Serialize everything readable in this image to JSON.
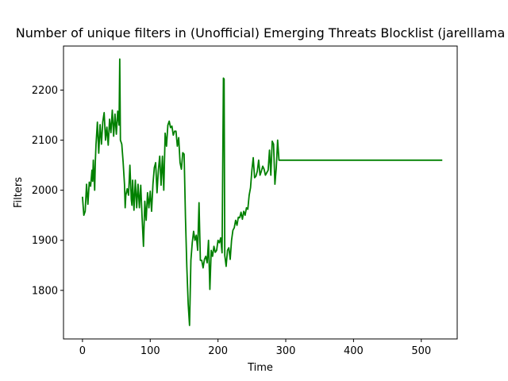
{
  "chart_data": {
    "type": "line",
    "title": "Number of unique filters in (Unofficial) Emerging Threats Blocklist (jarelllama",
    "xlabel": "Time",
    "ylabel": "Filters",
    "xlim": [
      -28,
      553
    ],
    "ylim": [
      1703,
      2288
    ],
    "xticks": [
      0,
      100,
      200,
      300,
      400,
      500
    ],
    "yticks": [
      1800,
      1900,
      2000,
      2100,
      2200
    ],
    "grid": false,
    "series": [
      {
        "color": "#008000",
        "points": [
          [
            0,
            1987
          ],
          [
            2,
            1950
          ],
          [
            4,
            1958
          ],
          [
            6,
            2012
          ],
          [
            8,
            1972
          ],
          [
            10,
            2016
          ],
          [
            12,
            2008
          ],
          [
            14,
            2040
          ],
          [
            15,
            2018
          ],
          [
            16,
            2060
          ],
          [
            18,
            2000
          ],
          [
            19,
            2058
          ],
          [
            20,
            2092
          ],
          [
            22,
            2136
          ],
          [
            24,
            2074
          ],
          [
            26,
            2131
          ],
          [
            28,
            2092
          ],
          [
            30,
            2137
          ],
          [
            32,
            2155
          ],
          [
            34,
            2100
          ],
          [
            36,
            2126
          ],
          [
            38,
            2090
          ],
          [
            40,
            2142
          ],
          [
            42,
            2115
          ],
          [
            44,
            2160
          ],
          [
            46,
            2108
          ],
          [
            48,
            2152
          ],
          [
            50,
            2112
          ],
          [
            52,
            2158
          ],
          [
            54,
            2130
          ],
          [
            55,
            2262
          ],
          [
            56,
            2100
          ],
          [
            58,
            2092
          ],
          [
            60,
            2056
          ],
          [
            62,
            2012
          ],
          [
            63,
            1965
          ],
          [
            64,
            1990
          ],
          [
            66,
            2003
          ],
          [
            68,
            1990
          ],
          [
            70,
            2050
          ],
          [
            72,
            1982
          ],
          [
            73,
            1970
          ],
          [
            74,
            2020
          ],
          [
            76,
            1960
          ],
          [
            78,
            2020
          ],
          [
            80,
            1965
          ],
          [
            82,
            2012
          ],
          [
            84,
            1965
          ],
          [
            86,
            2010
          ],
          [
            88,
            1945
          ],
          [
            90,
            1888
          ],
          [
            92,
            1978
          ],
          [
            94,
            1940
          ],
          [
            96,
            1995
          ],
          [
            98,
            1965
          ],
          [
            100,
            1998
          ],
          [
            102,
            1958
          ],
          [
            104,
            2012
          ],
          [
            106,
            2045
          ],
          [
            108,
            2055
          ],
          [
            110,
            1995
          ],
          [
            112,
            2040
          ],
          [
            114,
            2068
          ],
          [
            116,
            2010
          ],
          [
            118,
            2068
          ],
          [
            120,
            2000
          ],
          [
            122,
            2114
          ],
          [
            124,
            2088
          ],
          [
            126,
            2130
          ],
          [
            128,
            2138
          ],
          [
            130,
            2125
          ],
          [
            132,
            2128
          ],
          [
            134,
            2110
          ],
          [
            136,
            2118
          ],
          [
            138,
            2118
          ],
          [
            140,
            2088
          ],
          [
            142,
            2105
          ],
          [
            144,
            2055
          ],
          [
            146,
            2042
          ],
          [
            148,
            2075
          ],
          [
            150,
            2072
          ],
          [
            152,
            1945
          ],
          [
            154,
            1847
          ],
          [
            156,
            1773
          ],
          [
            158,
            1730
          ],
          [
            160,
            1860
          ],
          [
            162,
            1895
          ],
          [
            164,
            1918
          ],
          [
            166,
            1900
          ],
          [
            168,
            1910
          ],
          [
            170,
            1880
          ],
          [
            172,
            1975
          ],
          [
            174,
            1860
          ],
          [
            176,
            1860
          ],
          [
            178,
            1845
          ],
          [
            180,
            1862
          ],
          [
            182,
            1868
          ],
          [
            184,
            1855
          ],
          [
            186,
            1900
          ],
          [
            188,
            1802
          ],
          [
            190,
            1880
          ],
          [
            192,
            1868
          ],
          [
            194,
            1888
          ],
          [
            196,
            1876
          ],
          [
            198,
            1880
          ],
          [
            200,
            1900
          ],
          [
            202,
            1895
          ],
          [
            204,
            1905
          ],
          [
            206,
            1875
          ],
          [
            208,
            2224
          ],
          [
            209,
            2222
          ],
          [
            210,
            1870
          ],
          [
            212,
            1848
          ],
          [
            214,
            1880
          ],
          [
            216,
            1885
          ],
          [
            218,
            1862
          ],
          [
            220,
            1900
          ],
          [
            222,
            1920
          ],
          [
            224,
            1925
          ],
          [
            226,
            1940
          ],
          [
            228,
            1930
          ],
          [
            230,
            1946
          ],
          [
            232,
            1945
          ],
          [
            234,
            1956
          ],
          [
            236,
            1942
          ],
          [
            238,
            1958
          ],
          [
            240,
            1950
          ],
          [
            242,
            1965
          ],
          [
            244,
            1962
          ],
          [
            246,
            1990
          ],
          [
            248,
            2005
          ],
          [
            250,
            2040
          ],
          [
            252,
            2065
          ],
          [
            254,
            2025
          ],
          [
            256,
            2028
          ],
          [
            258,
            2038
          ],
          [
            260,
            2060
          ],
          [
            262,
            2030
          ],
          [
            264,
            2038
          ],
          [
            266,
            2048
          ],
          [
            268,
            2042
          ],
          [
            270,
            2030
          ],
          [
            272,
            2035
          ],
          [
            274,
            2040
          ],
          [
            276,
            2080
          ],
          [
            278,
            2030
          ],
          [
            280,
            2098
          ],
          [
            282,
            2092
          ],
          [
            284,
            2012
          ],
          [
            286,
            2045
          ],
          [
            288,
            2100
          ],
          [
            290,
            2060
          ],
          [
            300,
            2060
          ],
          [
            350,
            2060
          ],
          [
            400,
            2060
          ],
          [
            450,
            2060
          ],
          [
            500,
            2060
          ],
          [
            531,
            2060
          ]
        ]
      }
    ]
  }
}
